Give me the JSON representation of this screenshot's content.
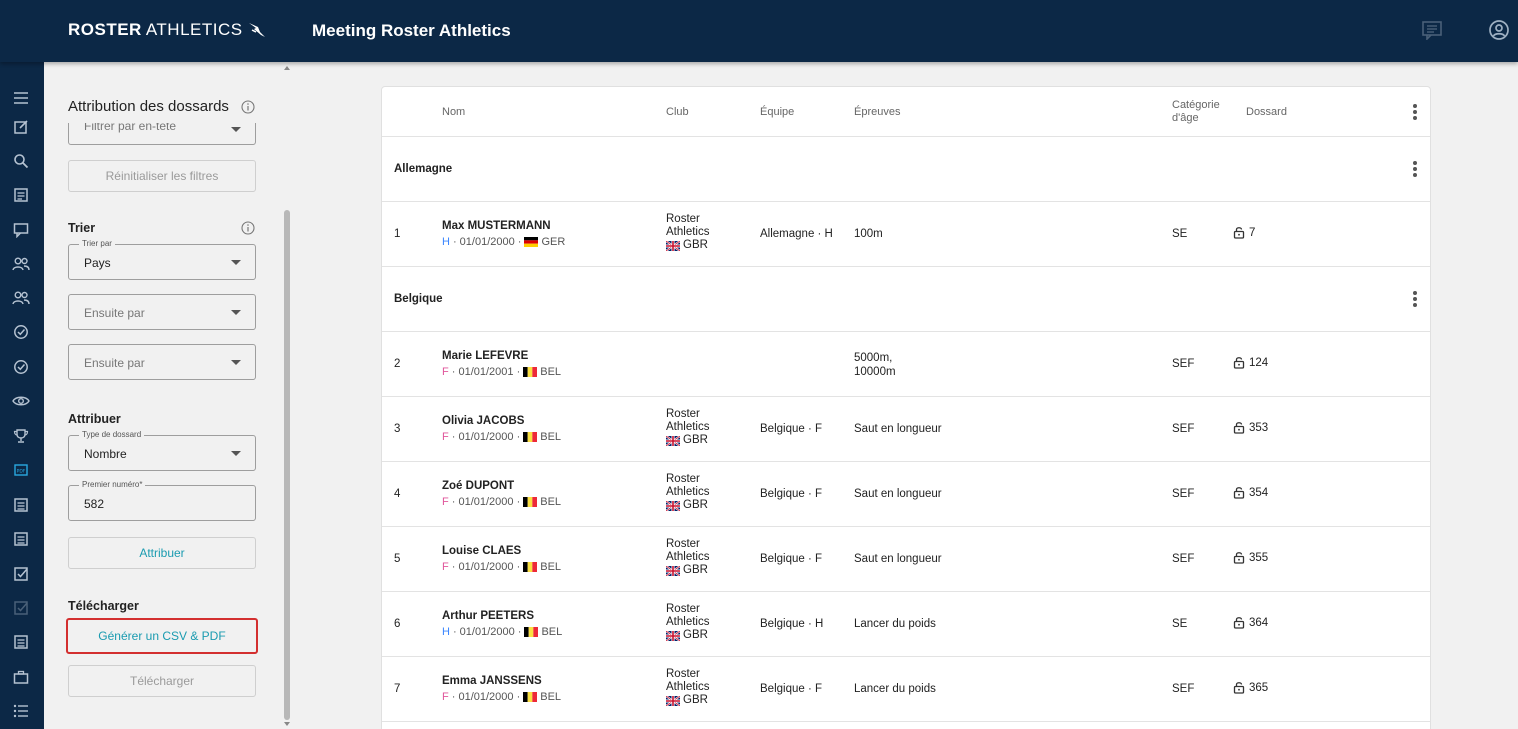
{
  "header": {
    "logo_bold": "ROSTER",
    "logo_light": "ATHLETICS",
    "title": "Meeting Roster Athletics",
    "icons": [
      "chat-icon",
      "account-circle-icon"
    ]
  },
  "rail": {
    "icons": [
      "menu-icon",
      "edit-icon",
      "search-icon",
      "list-icon",
      "comment-icon",
      "people-icon",
      "people-outline-icon",
      "check-circle-icon",
      "check-circle-outline-icon",
      "eye-icon",
      "trophy-icon",
      "pdf-icon",
      "list-alt-icon",
      "list-alt-2-icon",
      "checkbox-icon",
      "checkbox-disabled-icon",
      "list-alt-3-icon",
      "briefcase-icon",
      "bullet-list-icon"
    ]
  },
  "panel": {
    "title": "Attribution des dossards",
    "filter_header_placeholder": "Filtrer par en-tête",
    "reset_filters": "Réinitialiser les filtres",
    "sort": {
      "title": "Trier",
      "sort_by_label": "Trier par",
      "sort_by_value": "Pays",
      "then_by_1": "Ensuite par",
      "then_by_2": "Ensuite par"
    },
    "assign": {
      "title": "Attribuer",
      "bib_type_label": "Type de dossard",
      "bib_type_value": "Nombre",
      "first_number_label": "Premier numéro*",
      "first_number_value": "582",
      "assign_button": "Attribuer"
    },
    "download": {
      "title": "Télécharger",
      "generate_button": "Générer un CSV & PDF",
      "download_button": "Télécharger"
    }
  },
  "table": {
    "columns": {
      "name": "Nom",
      "club": "Club",
      "team": "Équipe",
      "events": "Épreuves",
      "age_cat_1": "Catégorie",
      "age_cat_2": "d'âge",
      "bib": "Dossard"
    },
    "groups": [
      {
        "label": "Allemagne",
        "rows": [
          {
            "num": "1",
            "name": "Max MUSTERMANN",
            "sex": "H",
            "dob": "· 01/01/2000 ·",
            "country": "GER",
            "club1": "Roster",
            "club2": "Athletics",
            "club_country": "GBR",
            "team": "Allemagne · H",
            "events1": "100m",
            "events2": "",
            "cat": "SE",
            "bib": "7"
          }
        ]
      },
      {
        "label": "Belgique",
        "rows": [
          {
            "num": "2",
            "name": "Marie LEFEVRE",
            "sex": "F",
            "dob": "· 01/01/2001 ·",
            "country": "BEL",
            "club1": "",
            "club2": "",
            "club_country": "",
            "team": "",
            "events1": "5000m,",
            "events2": "10000m",
            "cat": "SEF",
            "bib": "124"
          },
          {
            "num": "3",
            "name": "Olivia JACOBS",
            "sex": "F",
            "dob": "· 01/01/2000 ·",
            "country": "BEL",
            "club1": "Roster",
            "club2": "Athletics",
            "club_country": "GBR",
            "team": "Belgique · F",
            "events1": "Saut en longueur",
            "events2": "",
            "cat": "SEF",
            "bib": "353"
          },
          {
            "num": "4",
            "name": "Zoé DUPONT",
            "sex": "F",
            "dob": "· 01/01/2000 ·",
            "country": "BEL",
            "club1": "Roster",
            "club2": "Athletics",
            "club_country": "GBR",
            "team": "Belgique · F",
            "events1": "Saut en longueur",
            "events2": "",
            "cat": "SEF",
            "bib": "354"
          },
          {
            "num": "5",
            "name": "Louise CLAES",
            "sex": "F",
            "dob": "· 01/01/2000 ·",
            "country": "BEL",
            "club1": "Roster",
            "club2": "Athletics",
            "club_country": "GBR",
            "team": "Belgique · F",
            "events1": "Saut en longueur",
            "events2": "",
            "cat": "SEF",
            "bib": "355"
          },
          {
            "num": "6",
            "name": "Arthur PEETERS",
            "sex": "H",
            "dob": "· 01/01/2000 ·",
            "country": "BEL",
            "club1": "Roster",
            "club2": "Athletics",
            "club_country": "GBR",
            "team": "Belgique · H",
            "events1": "Lancer du poids",
            "events2": "",
            "cat": "SE",
            "bib": "364"
          },
          {
            "num": "7",
            "name": "Emma JANSSENS",
            "sex": "F",
            "dob": "· 01/01/2000 ·",
            "country": "BEL",
            "club1": "Roster",
            "club2": "Athletics",
            "club_country": "GBR",
            "team": "Belgique · F",
            "events1": "Lancer du poids",
            "events2": "",
            "cat": "SEF",
            "bib": "365"
          }
        ]
      }
    ]
  },
  "colors": {
    "navy": "#0c2846",
    "teal": "#1a9bb0",
    "focus_red": "#d32f2f",
    "male": "#3a86ff",
    "female": "#e0569b"
  }
}
